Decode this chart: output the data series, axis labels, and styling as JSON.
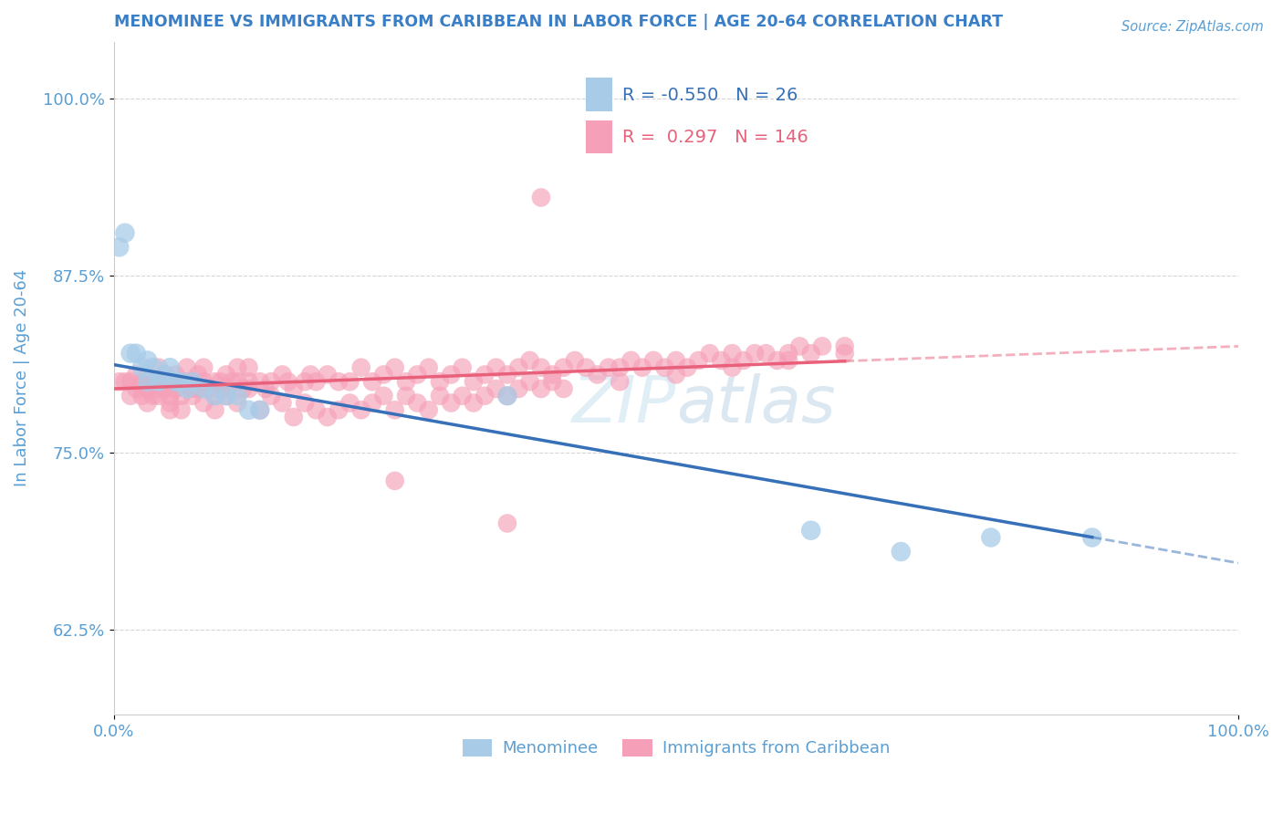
{
  "title": "MENOMINEE VS IMMIGRANTS FROM CARIBBEAN IN LABOR FORCE | AGE 20-64 CORRELATION CHART",
  "source": "Source: ZipAtlas.com",
  "ylabel": "In Labor Force | Age 20-64",
  "xlim": [
    0.0,
    1.0
  ],
  "ylim": [
    0.565,
    1.04
  ],
  "yticks": [
    0.625,
    0.75,
    0.875,
    1.0
  ],
  "ytick_labels": [
    "62.5%",
    "75.0%",
    "87.5%",
    "100.0%"
  ],
  "xticks": [
    0.0,
    1.0
  ],
  "xtick_labels": [
    "0.0%",
    "100.0%"
  ],
  "legend_r1": "-0.550",
  "legend_n1": "26",
  "legend_r2": "0.297",
  "legend_n2": "146",
  "series1_label": "Menominee",
  "series2_label": "Immigrants from Caribbean",
  "series1_color": "#a8cce8",
  "series2_color": "#f5a0b8",
  "line1_color": "#3670b8",
  "line2_color": "#e8607a",
  "title_color": "#3a7ec6",
  "axis_color": "#5a9fd4",
  "menominee_x": [
    0.005,
    0.01,
    0.015,
    0.02,
    0.025,
    0.03,
    0.03,
    0.035,
    0.04,
    0.045,
    0.05,
    0.055,
    0.06,
    0.065,
    0.07,
    0.08,
    0.09,
    0.1,
    0.11,
    0.12,
    0.13,
    0.35,
    0.62,
    0.7,
    0.78,
    0.87
  ],
  "menominee_y": [
    0.895,
    0.905,
    0.82,
    0.82,
    0.81,
    0.815,
    0.8,
    0.81,
    0.8,
    0.805,
    0.81,
    0.8,
    0.8,
    0.795,
    0.8,
    0.795,
    0.79,
    0.79,
    0.79,
    0.78,
    0.78,
    0.79,
    0.695,
    0.68,
    0.69,
    0.69
  ],
  "caribbean_x": [
    0.005,
    0.01,
    0.015,
    0.015,
    0.02,
    0.02,
    0.025,
    0.025,
    0.03,
    0.03,
    0.03,
    0.035,
    0.035,
    0.04,
    0.04,
    0.04,
    0.045,
    0.045,
    0.05,
    0.05,
    0.05,
    0.055,
    0.055,
    0.06,
    0.06,
    0.065,
    0.065,
    0.07,
    0.07,
    0.075,
    0.075,
    0.08,
    0.08,
    0.085,
    0.09,
    0.09,
    0.095,
    0.1,
    0.1,
    0.105,
    0.11,
    0.11,
    0.115,
    0.12,
    0.12,
    0.13,
    0.135,
    0.14,
    0.15,
    0.155,
    0.16,
    0.17,
    0.175,
    0.18,
    0.19,
    0.2,
    0.21,
    0.22,
    0.23,
    0.24,
    0.25,
    0.26,
    0.27,
    0.28,
    0.29,
    0.3,
    0.31,
    0.32,
    0.33,
    0.34,
    0.35,
    0.36,
    0.37,
    0.38,
    0.39,
    0.4,
    0.41,
    0.42,
    0.43,
    0.44,
    0.45,
    0.46,
    0.47,
    0.48,
    0.49,
    0.5,
    0.51,
    0.52,
    0.53,
    0.54,
    0.55,
    0.56,
    0.57,
    0.58,
    0.59,
    0.6,
    0.61,
    0.62,
    0.63,
    0.65,
    0.03,
    0.04,
    0.05,
    0.06,
    0.07,
    0.08,
    0.09,
    0.1,
    0.11,
    0.12,
    0.13,
    0.14,
    0.15,
    0.16,
    0.17,
    0.18,
    0.19,
    0.2,
    0.21,
    0.22,
    0.23,
    0.24,
    0.25,
    0.26,
    0.27,
    0.28,
    0.29,
    0.3,
    0.31,
    0.32,
    0.33,
    0.34,
    0.35,
    0.36,
    0.37,
    0.38,
    0.39,
    0.4,
    0.45,
    0.5,
    0.55,
    0.6,
    0.65,
    0.38,
    0.25,
    0.35
  ],
  "caribbean_y": [
    0.8,
    0.8,
    0.8,
    0.79,
    0.795,
    0.805,
    0.8,
    0.79,
    0.8,
    0.795,
    0.785,
    0.8,
    0.79,
    0.8,
    0.795,
    0.81,
    0.795,
    0.805,
    0.8,
    0.79,
    0.78,
    0.795,
    0.805,
    0.8,
    0.79,
    0.8,
    0.81,
    0.8,
    0.79,
    0.795,
    0.805,
    0.8,
    0.81,
    0.795,
    0.8,
    0.79,
    0.8,
    0.805,
    0.795,
    0.8,
    0.8,
    0.81,
    0.795,
    0.8,
    0.81,
    0.8,
    0.795,
    0.8,
    0.805,
    0.8,
    0.795,
    0.8,
    0.805,
    0.8,
    0.805,
    0.8,
    0.8,
    0.81,
    0.8,
    0.805,
    0.81,
    0.8,
    0.805,
    0.81,
    0.8,
    0.805,
    0.81,
    0.8,
    0.805,
    0.81,
    0.805,
    0.81,
    0.815,
    0.81,
    0.805,
    0.81,
    0.815,
    0.81,
    0.805,
    0.81,
    0.81,
    0.815,
    0.81,
    0.815,
    0.81,
    0.815,
    0.81,
    0.815,
    0.82,
    0.815,
    0.82,
    0.815,
    0.82,
    0.82,
    0.815,
    0.82,
    0.825,
    0.82,
    0.825,
    0.825,
    0.795,
    0.79,
    0.785,
    0.78,
    0.795,
    0.785,
    0.78,
    0.79,
    0.785,
    0.795,
    0.78,
    0.79,
    0.785,
    0.775,
    0.785,
    0.78,
    0.775,
    0.78,
    0.785,
    0.78,
    0.785,
    0.79,
    0.78,
    0.79,
    0.785,
    0.78,
    0.79,
    0.785,
    0.79,
    0.785,
    0.79,
    0.795,
    0.79,
    0.795,
    0.8,
    0.795,
    0.8,
    0.795,
    0.8,
    0.805,
    0.81,
    0.815,
    0.82,
    0.93,
    0.73,
    0.7
  ]
}
